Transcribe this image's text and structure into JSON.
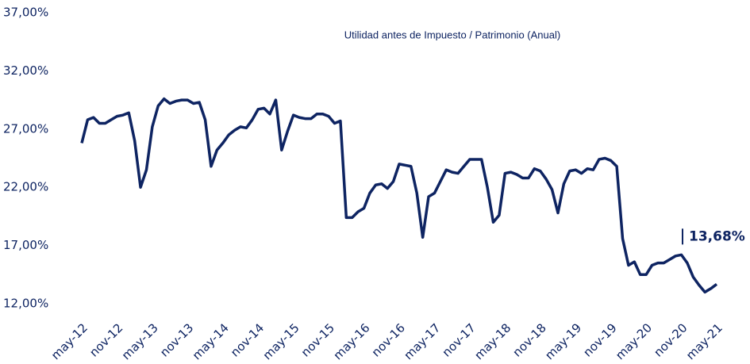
{
  "chart_data": {
    "type": "line",
    "title": "Utilidad antes de Impuesto / Patrimonio (Anual)",
    "annotation": "13,68%",
    "categories": [
      "may-12",
      null,
      null,
      null,
      null,
      null,
      "nov-12",
      null,
      null,
      null,
      null,
      null,
      "may-13",
      null,
      null,
      null,
      null,
      null,
      "nov-13",
      null,
      null,
      null,
      null,
      null,
      "may-14",
      null,
      null,
      null,
      null,
      null,
      "nov-14",
      null,
      null,
      null,
      null,
      null,
      "may-15",
      null,
      null,
      null,
      null,
      null,
      "nov-15",
      null,
      null,
      null,
      null,
      null,
      "may-16",
      null,
      null,
      null,
      null,
      null,
      "nov-16",
      null,
      null,
      null,
      null,
      null,
      "may-17",
      null,
      null,
      null,
      null,
      null,
      "nov-17",
      null,
      null,
      null,
      null,
      null,
      "may-18",
      null,
      null,
      null,
      null,
      null,
      "nov-18",
      null,
      null,
      null,
      null,
      null,
      "may-19",
      null,
      null,
      null,
      null,
      null,
      "nov-19",
      null,
      null,
      null,
      null,
      null,
      "may-20",
      null,
      null,
      null,
      null,
      null,
      "nov-20",
      null,
      null,
      null,
      null,
      null,
      "may-21"
    ],
    "series": [
      {
        "name": "Utilidad antes de Impuesto / Patrimonio",
        "color": "#0e2462",
        "values": [
          25.8,
          27.8,
          28.0,
          27.5,
          27.5,
          27.8,
          28.1,
          28.2,
          28.4,
          26.0,
          22.0,
          23.5,
          27.2,
          29.0,
          29.6,
          29.2,
          29.4,
          29.5,
          29.5,
          29.2,
          29.3,
          27.8,
          23.8,
          25.2,
          25.8,
          26.5,
          26.9,
          27.2,
          27.1,
          27.8,
          28.7,
          28.8,
          28.3,
          29.5,
          25.2,
          26.8,
          28.2,
          28.0,
          27.9,
          27.9,
          28.3,
          28.3,
          28.1,
          27.5,
          27.7,
          19.4,
          19.4,
          19.9,
          20.2,
          21.5,
          22.2,
          22.3,
          21.9,
          22.5,
          24.0,
          23.9,
          23.8,
          21.5,
          17.7,
          21.2,
          21.5,
          22.5,
          23.5,
          23.3,
          23.2,
          23.8,
          24.4,
          24.4,
          24.4,
          22.0,
          19.0,
          19.6,
          23.2,
          23.3,
          23.1,
          22.8,
          22.8,
          23.6,
          23.4,
          22.7,
          21.8,
          19.8,
          22.3,
          23.4,
          23.5,
          23.2,
          23.6,
          23.5,
          24.4,
          24.5,
          24.3,
          23.8,
          17.6,
          15.3,
          15.6,
          14.5,
          14.5,
          15.3,
          15.5,
          15.5,
          15.8,
          16.1,
          16.2,
          15.5,
          14.3,
          13.6,
          13.0,
          13.3,
          13.68
        ]
      }
    ],
    "ylim": [
      12,
      37
    ],
    "yticks": [
      {
        "value": 12,
        "label": "12,00%"
      },
      {
        "value": 17,
        "label": "17,00%"
      },
      {
        "value": 22,
        "label": "22,00%"
      },
      {
        "value": 27,
        "label": "27,00%"
      },
      {
        "value": 32,
        "label": "32,00%"
      },
      {
        "value": 37,
        "label": "37,00%"
      }
    ],
    "grid": false
  }
}
